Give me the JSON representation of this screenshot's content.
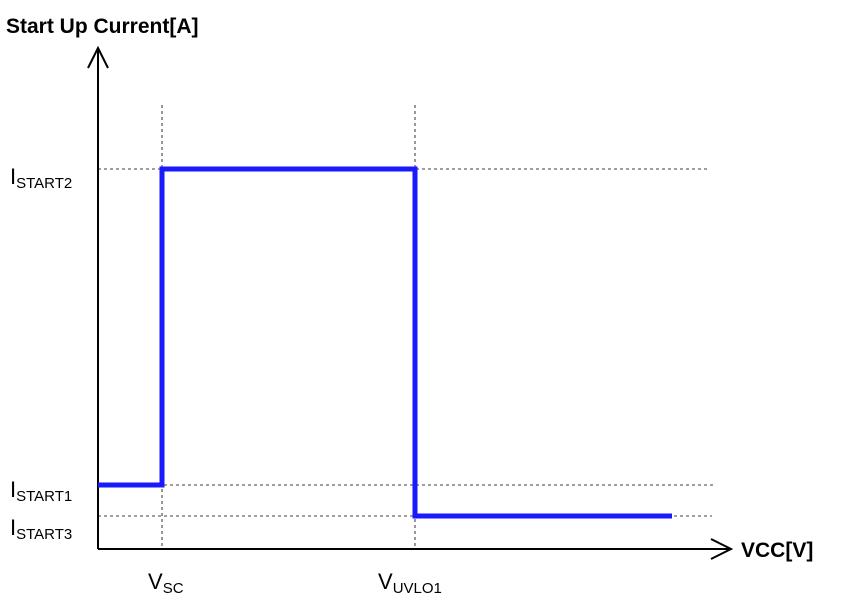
{
  "chart_data": {
    "type": "line",
    "title": "",
    "ylabel": "Start Up Current[A]",
    "xlabel": "VCC[V]",
    "x_ticks": [
      {
        "name": "v_sc",
        "main": "V",
        "sub": "SC"
      },
      {
        "name": "v_uvlo1",
        "main": "V",
        "sub": "UVLO1"
      }
    ],
    "y_ticks": [
      {
        "name": "i_start2",
        "main": "I",
        "sub": "START2"
      },
      {
        "name": "i_start1",
        "main": "I",
        "sub": "START1"
      },
      {
        "name": "i_start3",
        "main": "I",
        "sub": "START3"
      }
    ],
    "series": [
      {
        "color": "#1a1aff",
        "points": [
          [
            "0",
            "I_START1"
          ],
          [
            "V_SC",
            "I_START1"
          ],
          [
            "V_SC",
            "I_START2"
          ],
          [
            "V_UVLO1",
            "I_START2"
          ],
          [
            "V_UVLO1",
            "I_START3"
          ],
          [
            "max",
            "I_START3"
          ]
        ]
      }
    ],
    "grid": false,
    "guides": "dashed"
  }
}
